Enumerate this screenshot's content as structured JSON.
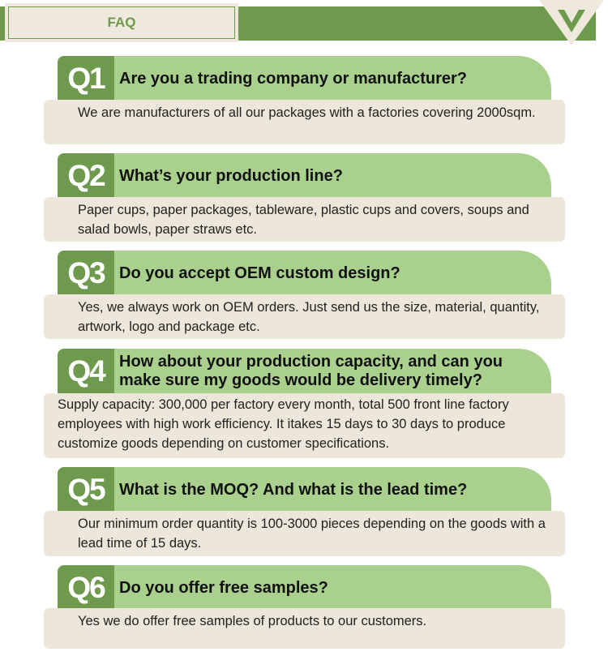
{
  "header": {
    "title": "FAQ",
    "logo_letter": "V",
    "colors": {
      "dark_green": "#6d9a4c",
      "light_green": "#a9d18d",
      "beige": "#ede6da"
    }
  },
  "faqs": [
    {
      "num": "Q1",
      "question": "Are you a trading company or manufacturer?",
      "answer": "We are manufacturers of all our packages with a factories covering 2000sqm."
    },
    {
      "num": "Q2",
      "question": "What’s your production line?",
      "answer": "Paper cups, paper packages, tableware, plastic cups and covers, soups and salad bowls, paper straws etc."
    },
    {
      "num": "Q3",
      "question": "Do you accept OEM custom design?",
      "answer": "Yes, we always work on OEM orders. Just send us the size, material, quantity, artwork, logo and package etc."
    },
    {
      "num": "Q4",
      "question": "How about your production capacity, and can you make sure my goods would be delivery timely?",
      "answer": "Supply capacity: 300,000 per factory every month, total 500 front line factory employees with high work efficiency. It itakes 15 days to 30 days to produce customize goods depending on customer specifications."
    },
    {
      "num": "Q5",
      "question": "What is the MOQ? And what is the lead time?",
      "answer": "Our minimum order quantity is 100-3000 pieces depending on the goods with a lead time of 15 days."
    },
    {
      "num": "Q6",
      "question": "Do you offer free samples?",
      "answer": "Yes we do offer free samples of products to our customers."
    }
  ]
}
